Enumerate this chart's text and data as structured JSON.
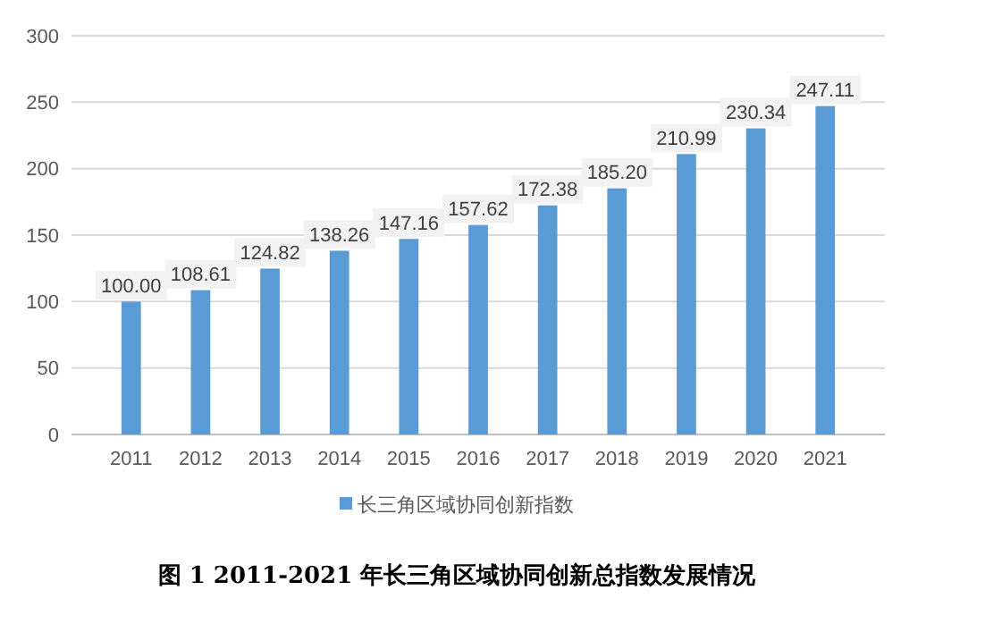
{
  "chart_data": {
    "type": "bar",
    "categories": [
      "2011",
      "2012",
      "2013",
      "2014",
      "2015",
      "2016",
      "2017",
      "2018",
      "2019",
      "2020",
      "2021"
    ],
    "series": [
      {
        "name": "长三角区域协同创新指数",
        "color": "#5b9bd5",
        "values": [
          100.0,
          108.61,
          124.82,
          138.26,
          147.16,
          157.62,
          172.38,
          185.2,
          210.99,
          230.34,
          247.11
        ]
      }
    ],
    "value_labels": [
      "100.00",
      "108.61",
      "124.82",
      "138.26",
      "147.16",
      "157.62",
      "172.38",
      "185.20",
      "210.99",
      "230.34",
      "247.11"
    ],
    "ylim": [
      0,
      300
    ],
    "yticks": [
      0,
      50,
      100,
      150,
      200,
      250,
      300
    ],
    "grid": "y",
    "legend": "bottom",
    "annotations": [
      "图 1  2011-2021 年长三角区域协同创新总指数发展情况"
    ]
  }
}
